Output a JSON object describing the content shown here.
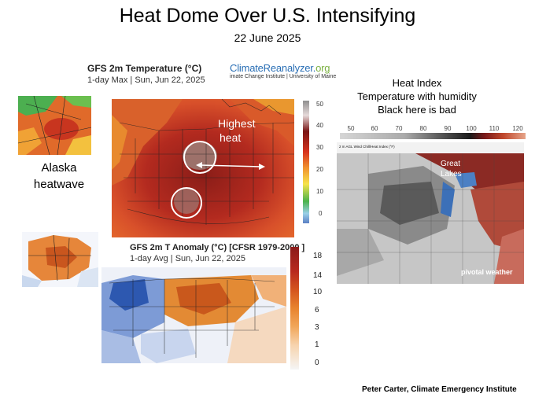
{
  "header": {
    "title": "Heat Dome Over U.S. Intensifying",
    "date": "22 June 2025"
  },
  "temp_map": {
    "title": "GFS 2m Temperature (°C)",
    "subtitle": "1-day Max | Sun, Jun 22, 2025",
    "logo_main": "ClimateReanalyzer.",
    "logo_org": "org",
    "logo_institute": "imate Change Institute | University of Maine",
    "annotation": "Highest heat",
    "annotation_line1": "Highest",
    "annotation_line2": "heat",
    "colorbar_ticks": [
      "50",
      "40",
      "30",
      "20",
      "10",
      "0"
    ]
  },
  "alaska": {
    "label_line1": "Alaska",
    "label_line2": "heatwave"
  },
  "heat_index": {
    "title_line1": "Heat Index",
    "title_line2": "Temperature with humidity",
    "title_line3": "Black here is bad",
    "scale_ticks": [
      "50",
      "60",
      "70",
      "80",
      "90",
      "100",
      "110",
      "120"
    ],
    "header_text": "2 m AGL Wind Chill/Heat Index (°F)",
    "label_line1": "Great",
    "label_line2": "Lakes",
    "watermark": "pivotal weather"
  },
  "anomaly_map": {
    "title": "GFS 2m T Anomaly (°C) [CFSR 1979-2000 ]",
    "subtitle": "1-day Avg | Sun, Jun 22, 2025",
    "colorbar_ticks": [
      "18",
      "14",
      "10",
      "6",
      "3",
      "1",
      "0"
    ]
  },
  "footer": {
    "credit": "Peter Carter,  Climate Emergency Institute"
  },
  "colors": {
    "hot_red": "#b8251f",
    "orange": "#e8742a",
    "cool_blue": "#3a63b6",
    "logo_blue": "#2a6fb5",
    "logo_green": "#7bb041"
  }
}
